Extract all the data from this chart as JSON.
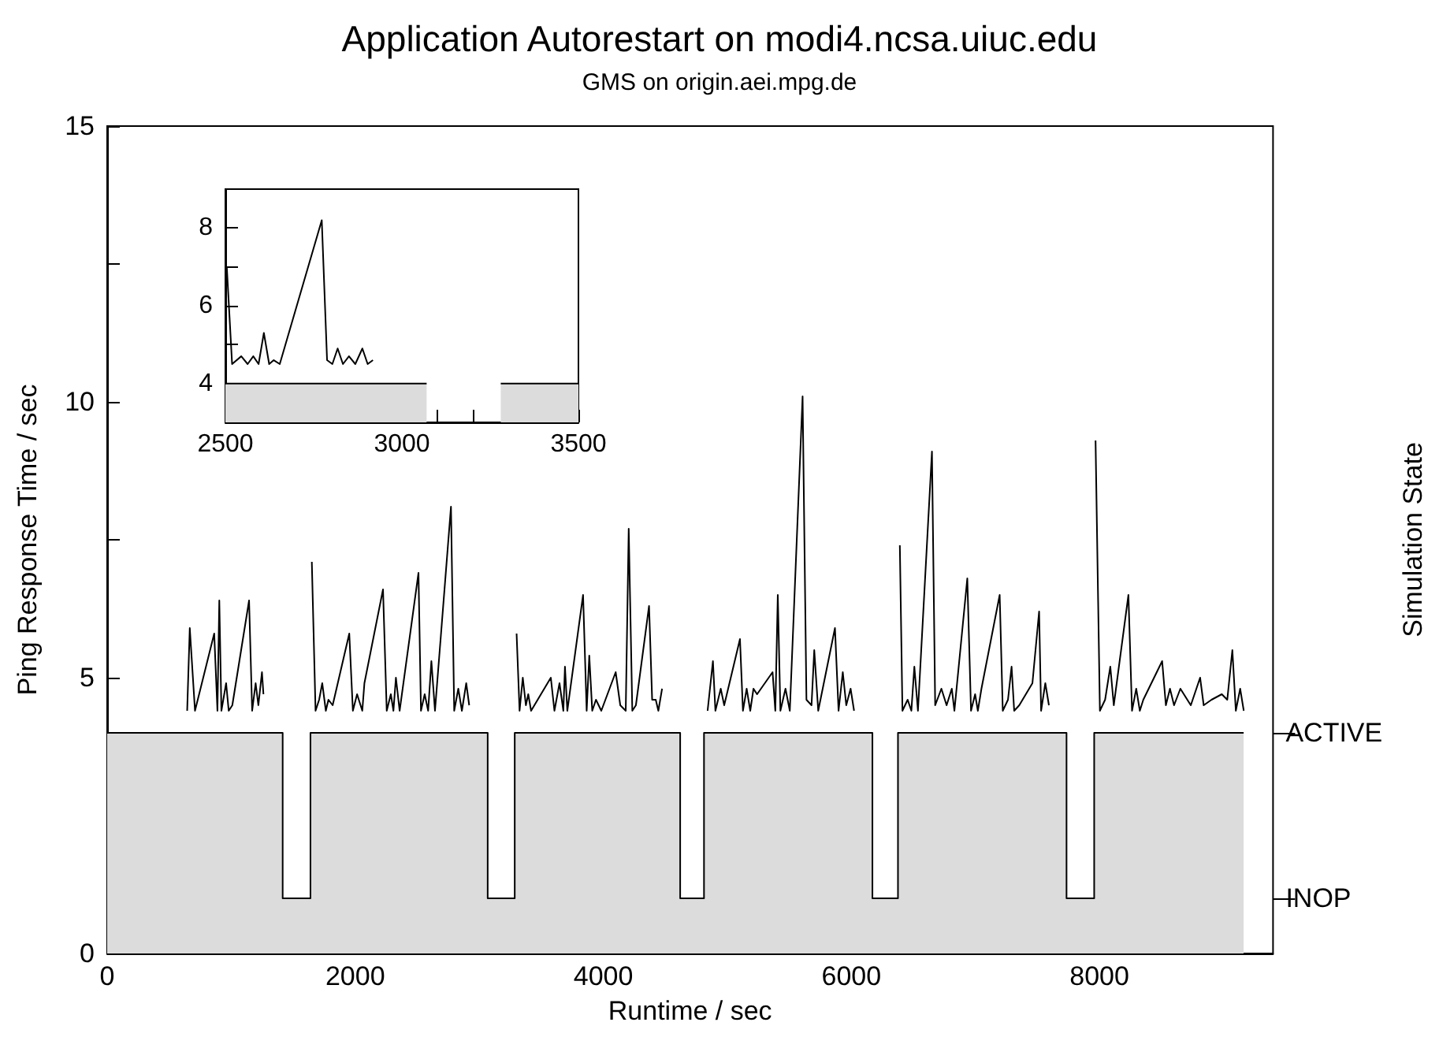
{
  "chart_data": [
    {
      "type": "line",
      "title": "Application Autorestart on modi4.ncsa.uiuc.edu",
      "subtitle": "GMS on origin.aei.mpg.de",
      "xlabel": "Runtime / sec",
      "ylabel": "Ping Response Time / sec",
      "y2label": "Simulation State",
      "marker": "none",
      "line_style": "solid",
      "xlim": [
        0,
        9400
      ],
      "xticks": [
        0,
        {
          "value": 1000,
          "label": null
        },
        2000,
        {
          "value": 3000,
          "label": null
        },
        4000,
        {
          "value": 5000,
          "label": null
        },
        6000,
        {
          "value": 7000,
          "label": null
        },
        8000,
        {
          "value": 9000,
          "label": null
        }
      ],
      "ylim": [
        0,
        15
      ],
      "yticks": [
        0,
        {
          "value": 2.5,
          "label": null
        },
        5,
        {
          "value": 7.5,
          "label": null
        },
        10,
        {
          "value": 12.5,
          "label": null
        },
        15
      ],
      "annotations": [
        "ACTIVE",
        "INOP"
      ],
      "series": [
        {
          "type": "area",
          "color": "#dcdcdc",
          "x": [
            0,
            1415,
            1415,
            1639,
            1639,
            3068,
            3068,
            3286,
            3286,
            4620,
            4620,
            4812,
            4812,
            6170,
            6170,
            6376,
            6376,
            7735,
            7735,
            7958,
            7958,
            9163
          ],
          "values": [
            4,
            4,
            1,
            1,
            4,
            4,
            1,
            1,
            4,
            4,
            1,
            1,
            4,
            4,
            1,
            1,
            4,
            4,
            1,
            1,
            4,
            4
          ]
        },
        {
          "type": "line",
          "color": "#000000",
          "x": [
            645,
            666,
            708,
            863,
            889,
            904,
            921,
            959,
            980,
            1009,
            1144,
            1169,
            1197,
            1219,
            1248,
            1260,
            1400,
            1650,
            1680,
            1709,
            1734,
            1763,
            1784,
            1818,
            1952,
            1981,
            2015,
            2057,
            2074,
            2224,
            2254,
            2287,
            2308,
            2328,
            2358,
            2510,
            2530,
            2560,
            2588,
            2614,
            2643,
            2772,
            2798,
            2831,
            2860,
            2895,
            2919,
            3100,
            3301,
            3325,
            3351,
            3376,
            3395,
            3418,
            3577,
            3606,
            3647,
            3678,
            3691,
            3710,
            3837,
            3866,
            3887,
            3911,
            3941,
            3984,
            4100,
            4137,
            4181,
            4205,
            4234,
            4263,
            4369,
            4394,
            4423,
            4444,
            4474,
            4700,
            4841,
            4884,
            4904,
            4947,
            4975,
            5102,
            5126,
            5156,
            5185,
            5211,
            5240,
            5365,
            5387,
            5407,
            5428,
            5469,
            5504,
            5607,
            5638,
            5679,
            5701,
            5733,
            5868,
            5897,
            5931,
            5959,
            5994,
            6022,
            6200,
            6391,
            6412,
            6454,
            6484,
            6508,
            6537,
            6650,
            6676,
            6726,
            6768,
            6810,
            6831,
            6935,
            6965,
            6998,
            7020,
            7049,
            7196,
            7221,
            7263,
            7292,
            7313,
            7354,
            7460,
            7514,
            7530,
            7564,
            7593,
            7800,
            7969,
            8004,
            8046,
            8088,
            8116,
            8234,
            8263,
            8297,
            8326,
            8354,
            8506,
            8536,
            8569,
            8602,
            8653,
            8737,
            8812,
            8841,
            8904,
            8987,
            9031,
            9072,
            9100,
            9135,
            9164
          ],
          "values": [
            4.4,
            5.9,
            4.4,
            5.8,
            4.4,
            6.4,
            4.4,
            4.9,
            4.4,
            4.5,
            6.4,
            4.4,
            4.9,
            4.5,
            5.1,
            4.7,
            null,
            7.1,
            4.4,
            4.6,
            4.9,
            4.4,
            4.6,
            4.5,
            5.8,
            4.4,
            4.7,
            4.4,
            4.9,
            6.6,
            4.4,
            4.7,
            4.4,
            5.0,
            4.4,
            6.9,
            4.4,
            4.7,
            4.4,
            5.3,
            4.4,
            8.1,
            4.4,
            4.8,
            4.4,
            4.9,
            4.5,
            null,
            5.8,
            4.4,
            5.0,
            4.5,
            4.7,
            4.4,
            5.0,
            4.4,
            4.9,
            4.4,
            5.2,
            4.4,
            6.5,
            4.4,
            5.4,
            4.4,
            4.6,
            4.4,
            5.1,
            4.5,
            4.4,
            7.7,
            4.4,
            4.5,
            6.3,
            4.6,
            4.6,
            4.4,
            4.8,
            null,
            4.4,
            5.3,
            4.4,
            4.8,
            4.5,
            5.7,
            4.4,
            4.8,
            4.4,
            4.8,
            4.7,
            5.1,
            4.4,
            6.5,
            4.4,
            4.8,
            4.4,
            10.1,
            4.6,
            4.5,
            5.5,
            4.4,
            5.9,
            4.4,
            5.1,
            4.5,
            4.8,
            4.4,
            null,
            7.4,
            4.4,
            4.6,
            4.4,
            5.2,
            4.4,
            9.1,
            4.5,
            4.8,
            4.5,
            4.8,
            4.4,
            6.8,
            4.4,
            4.7,
            4.4,
            4.8,
            6.5,
            4.4,
            4.6,
            5.2,
            4.4,
            4.5,
            4.9,
            6.2,
            4.4,
            4.9,
            4.5,
            null,
            9.3,
            4.4,
            4.6,
            5.2,
            4.5,
            6.5,
            4.4,
            4.8,
            4.4,
            4.6,
            5.3,
            4.5,
            4.8,
            4.5,
            4.8,
            4.5,
            5.0,
            4.5,
            4.6,
            4.7,
            4.6,
            5.5,
            4.4,
            4.8,
            4.4
          ]
        }
      ]
    },
    {
      "type": "line",
      "marker": "none",
      "line_style": "solid",
      "xlim": [
        2500,
        3500
      ],
      "xticks": [
        2500,
        {
          "value": 2600,
          "label": null
        },
        {
          "value": 2700,
          "label": null
        },
        {
          "value": 2800,
          "label": null
        },
        {
          "value": 2900,
          "label": null
        },
        3000,
        {
          "value": 3100,
          "label": null
        },
        {
          "value": 3200,
          "label": null
        },
        {
          "value": 3300,
          "label": null
        },
        {
          "value": 3400,
          "label": null
        },
        3500
      ],
      "ylim": [
        3,
        9
      ],
      "yticks": [
        4,
        {
          "value": 5,
          "label": null
        },
        6,
        {
          "value": 7,
          "label": null
        },
        8
      ],
      "series": [
        {
          "type": "area",
          "color": "#dcdcdc",
          "x": [
            2500,
            3070
          ],
          "values": [
            4,
            4
          ]
        },
        {
          "type": "area",
          "color": "#dcdcdc",
          "x": [
            3280,
            3500
          ],
          "values": [
            4,
            4
          ]
        },
        {
          "type": "line",
          "color": "#000000",
          "x": [
            2504,
            2519,
            2545,
            2563,
            2579,
            2594,
            2609,
            2624,
            2637,
            2654,
            2773,
            2788,
            2803,
            2818,
            2833,
            2850,
            2868,
            2888,
            2903,
            2918
          ],
          "values": [
            7.0,
            4.5,
            4.7,
            4.5,
            4.7,
            4.5,
            5.3,
            4.5,
            4.6,
            4.5,
            8.2,
            4.6,
            4.5,
            4.9,
            4.5,
            4.7,
            4.5,
            4.9,
            4.5,
            4.6
          ]
        }
      ]
    }
  ]
}
